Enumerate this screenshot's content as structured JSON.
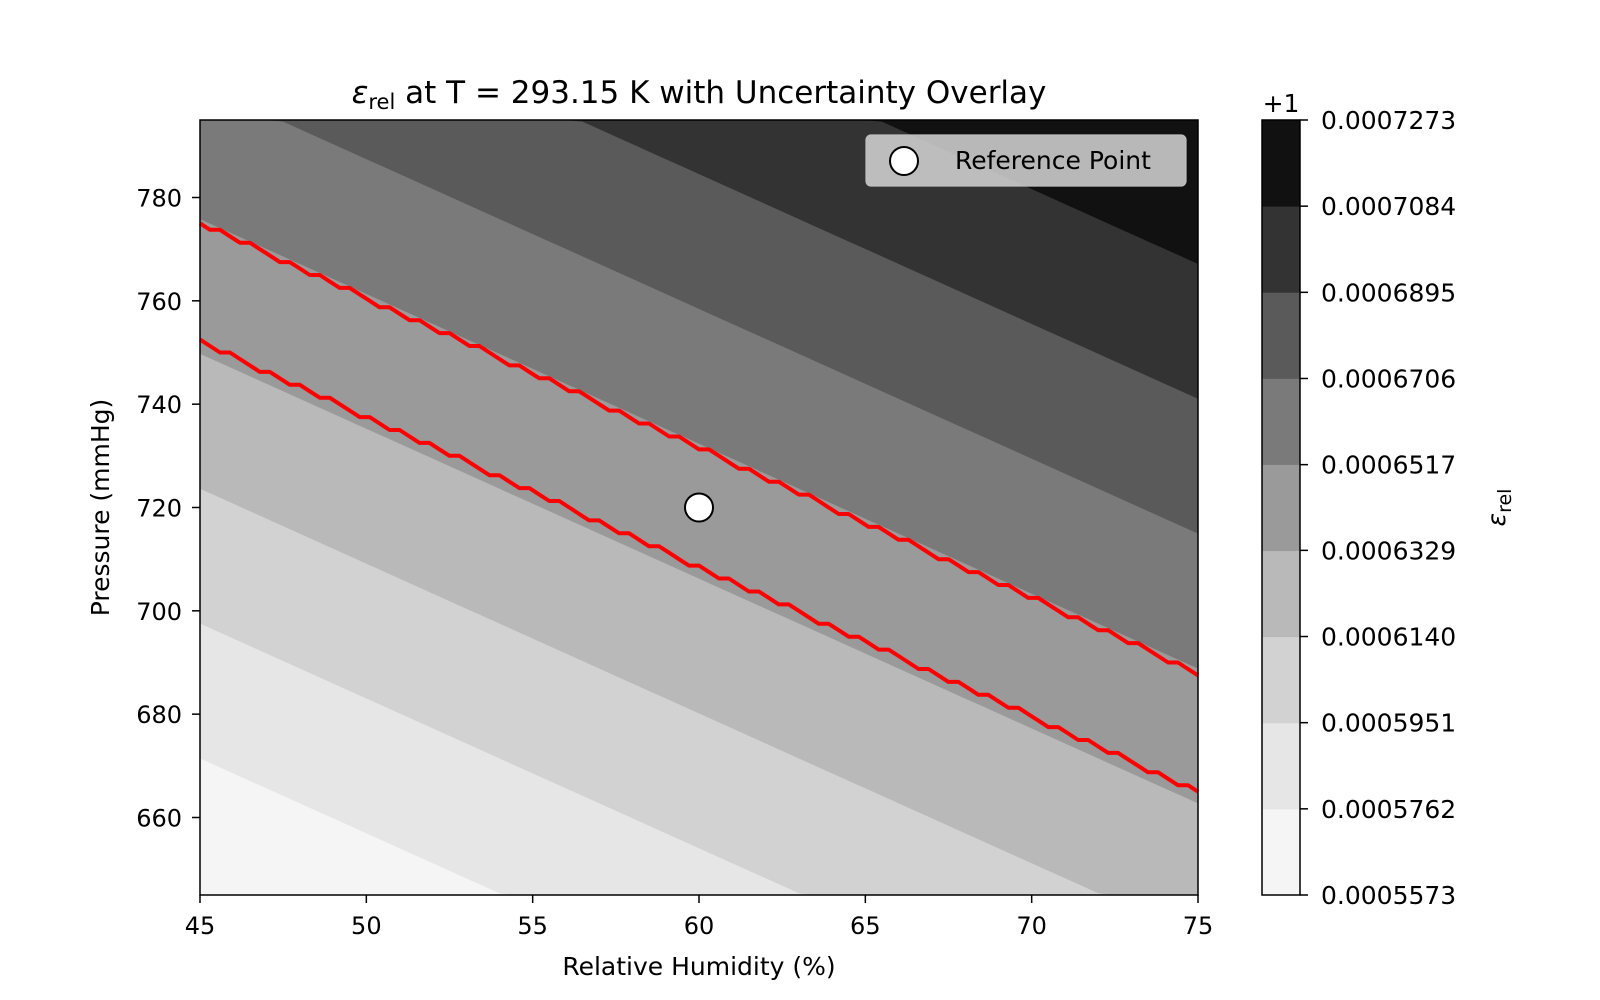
{
  "chart_data": {
    "type": "contour",
    "title_symbol": "ε",
    "title_subscript": "rel",
    "title_rest": " at T = 293.15 K with Uncertainty Overlay",
    "xlabel": "Relative Humidity (%)",
    "ylabel": "Pressure (mmHg)",
    "xlim": [
      45,
      75
    ],
    "ylim": [
      645,
      795
    ],
    "xticks": [
      45,
      50,
      55,
      60,
      65,
      70,
      75
    ],
    "yticks": [
      660,
      680,
      700,
      720,
      740,
      760,
      780
    ],
    "grid": false,
    "contour_levels": [
      0.0005573,
      0.0005762,
      0.0005951,
      0.000614,
      0.0006329,
      0.0006517,
      0.0006706,
      0.0006895,
      0.0007084,
      0.0007273
    ],
    "contour_level_labels": [
      "0.0005573",
      "0.0005762",
      "0.0005951",
      "0.0006140",
      "0.0006329",
      "0.0006517",
      "0.0006706",
      "0.0006895",
      "0.0007084",
      "0.0007273"
    ],
    "band_colors": [
      "#f5f5f5",
      "#e6e6e6",
      "#d2d2d2",
      "#b9b9b9",
      "#9a9a9a",
      "#7a7a7a",
      "#5a5a5a",
      "#333333",
      "#111111"
    ],
    "uncertainty_lines": {
      "color": "#ff0000",
      "lines": [
        {
          "points": [
            [
              45,
              775
            ],
            [
              75,
              688
            ]
          ]
        },
        {
          "points": [
            [
              45,
              752
            ],
            [
              75,
              665
            ]
          ]
        }
      ]
    },
    "reference_point": {
      "x": 60,
      "y": 720,
      "label": "Reference Point"
    },
    "legend_placement": "upper right",
    "colorbar": {
      "label_symbol": "ε",
      "label_subscript": "rel",
      "offset_text": "+1",
      "colormap": "Greys"
    }
  }
}
